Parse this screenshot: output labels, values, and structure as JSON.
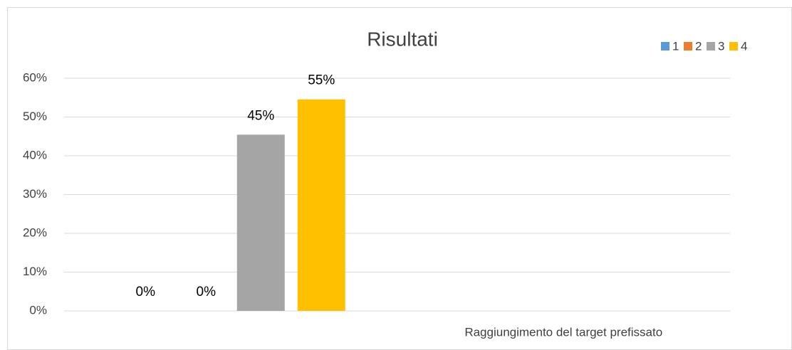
{
  "chart_data": {
    "type": "bar",
    "title": "Risultati",
    "categories": [
      null,
      "Raggiungimento del target prefissato"
    ],
    "series": [
      {
        "name": "1",
        "color": "#5b9bd5",
        "values": [
          0,
          null
        ],
        "value_labels": [
          "0%",
          null
        ]
      },
      {
        "name": "2",
        "color": "#ed7d31",
        "values": [
          0,
          null
        ],
        "value_labels": [
          "0%",
          null
        ]
      },
      {
        "name": "3",
        "color": "#a5a5a5",
        "values": [
          45.45,
          null
        ],
        "value_labels": [
          "45%",
          null
        ]
      },
      {
        "name": "4",
        "color": "#ffc000",
        "values": [
          54.55,
          null
        ],
        "value_labels": [
          "55%",
          null
        ]
      }
    ],
    "ylim": [
      0,
      60
    ],
    "yticks": [
      {
        "value": 0,
        "label": "0%"
      },
      {
        "value": 10,
        "label": "10%"
      },
      {
        "value": 20,
        "label": "20%"
      },
      {
        "value": 30,
        "label": "30%"
      },
      {
        "value": 40,
        "label": "40%"
      },
      {
        "value": 50,
        "label": "50%"
      },
      {
        "value": 60,
        "label": "60%"
      }
    ],
    "grid": true,
    "legend": "top-right"
  }
}
